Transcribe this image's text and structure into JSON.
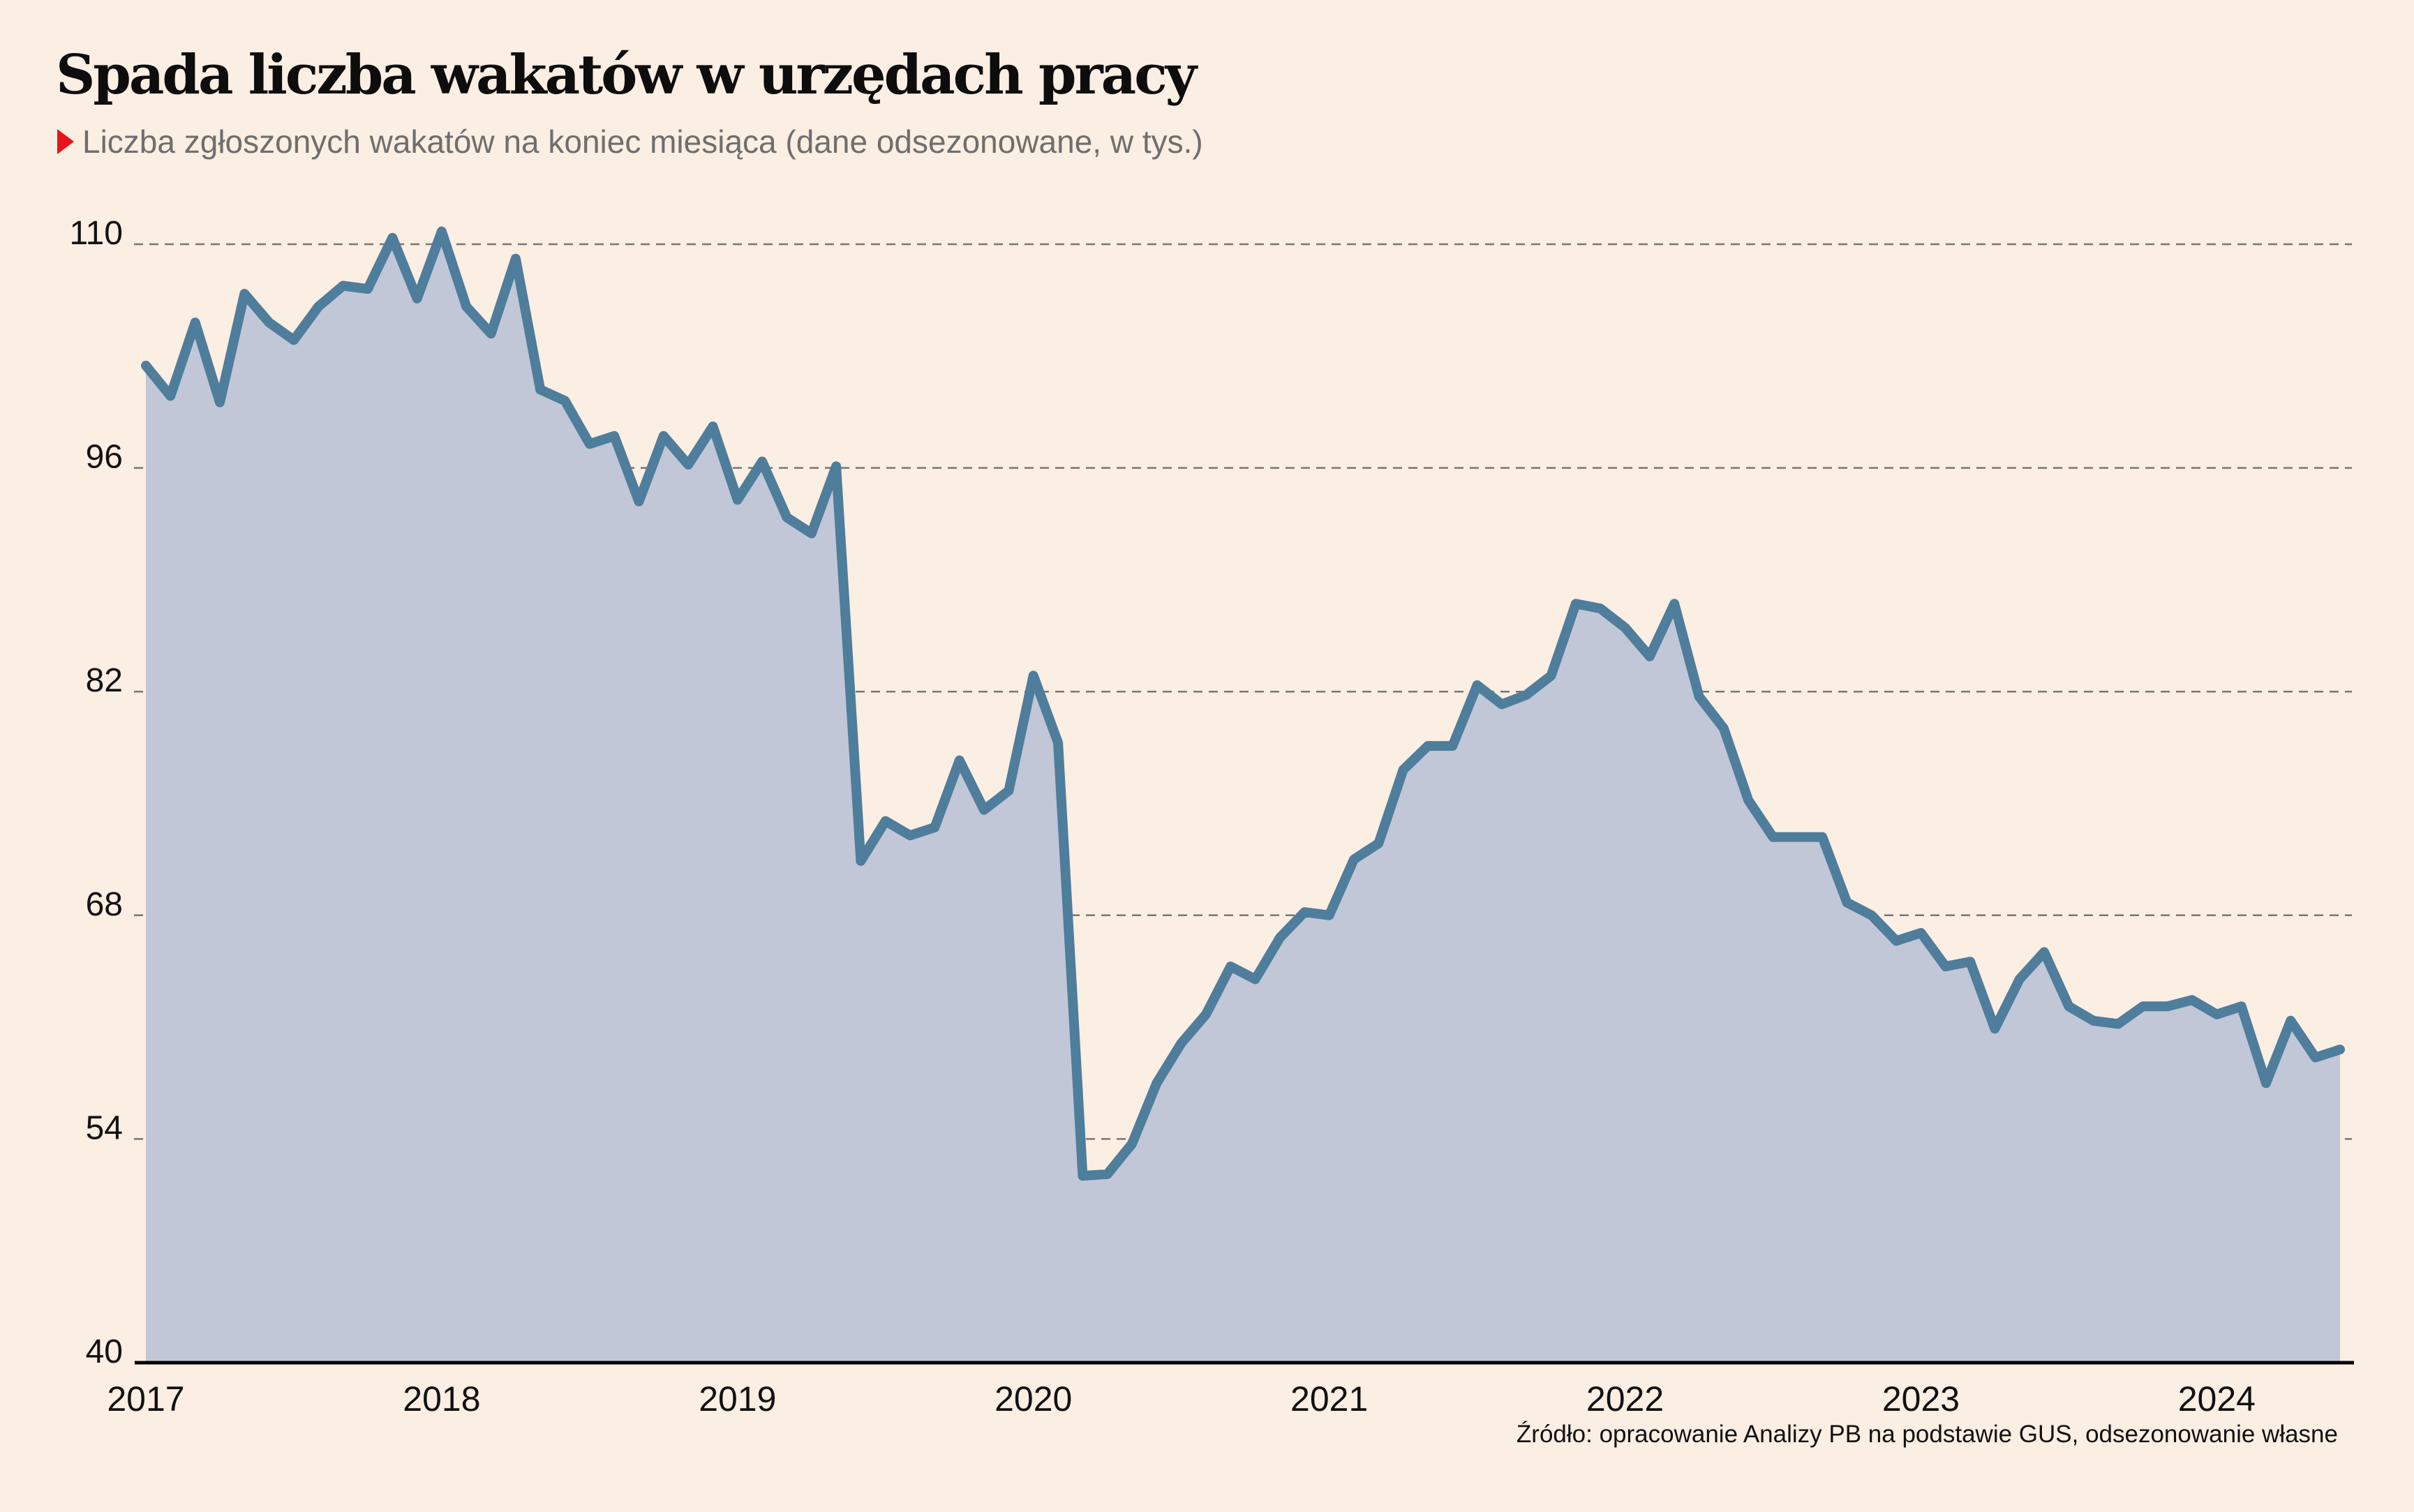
{
  "header": {
    "title": "Spada liczba wakatów w urzędach pracy",
    "subtitle": "Liczba zgłoszonych wakatów na koniec miesiąca (dane odsezonowane, w tys.)"
  },
  "footer": {
    "source": "Źródło: opracowanie Analizy PB na podstawie GUS, odsezonowanie własne"
  },
  "colors": {
    "background": "#fbeee2",
    "line": "#4f7d9c",
    "fill": "#c1c7d7",
    "accent_triangle": "#e8141c",
    "gridline": "#777777",
    "axis": "#000000"
  },
  "chart_data": {
    "type": "area",
    "title": "Spada liczba wakatów w urzędach pracy",
    "subtitle": "Liczba zgłoszonych wakatów na koniec miesiąca (dane odsezonowane, w tys.)",
    "xlabel": "",
    "ylabel": "",
    "x_start": "2017-01",
    "x_end": "2024-06",
    "frequency": "monthly",
    "x_ticks": [
      "2017",
      "2018",
      "2019",
      "2020",
      "2021",
      "2022",
      "2023",
      "2024"
    ],
    "y_ticks": [
      40,
      54,
      68,
      82,
      96,
      110
    ],
    "ylim": [
      40,
      110
    ],
    "grid": "horizontal-dashed",
    "legend": "none",
    "series": [
      {
        "name": "Liczba zgłoszonych wakatów (tys.)",
        "values": [
          102.4,
          100.5,
          105.1,
          100.1,
          106.9,
          105.1,
          104.0,
          106.1,
          107.4,
          107.2,
          110.4,
          106.6,
          110.8,
          106.1,
          104.4,
          109.1,
          100.9,
          100.2,
          97.5,
          98.0,
          93.9,
          98.0,
          96.2,
          98.6,
          94.0,
          96.4,
          92.9,
          91.9,
          96.1,
          71.4,
          73.9,
          73.0,
          73.5,
          77.7,
          74.6,
          75.8,
          83.0,
          78.8,
          51.7,
          51.8,
          53.7,
          57.5,
          60.0,
          61.8,
          64.8,
          64.0,
          66.6,
          68.2,
          68.0,
          71.5,
          72.5,
          77.1,
          78.6,
          78.6,
          82.4,
          81.2,
          81.8,
          83.0,
          87.5,
          87.2,
          86.0,
          84.2,
          87.5,
          81.7,
          79.7,
          75.2,
          72.9,
          72.9,
          72.9,
          68.8,
          68.0,
          66.4,
          66.9,
          64.8,
          65.1,
          60.9,
          64.0,
          65.7,
          62.3,
          61.4,
          61.2,
          62.3,
          62.3,
          62.7,
          61.8,
          62.3,
          57.5,
          61.4,
          59.1,
          59.6
        ]
      }
    ]
  }
}
